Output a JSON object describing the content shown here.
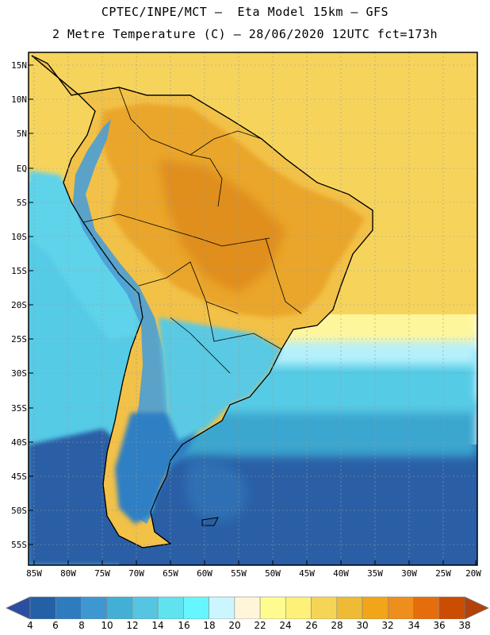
{
  "header": {
    "line1": "CPTEC/INPE/MCT –  Eta Model 15km – GFS",
    "line2": "2 Metre Temperature (C) – 28/06/2020 12UTC fct=173h"
  },
  "map": {
    "lat_labels": [
      "15N",
      "10N",
      "5N",
      "EQ",
      "5S",
      "10S",
      "15S",
      "20S",
      "25S",
      "30S",
      "35S",
      "40S",
      "45S",
      "50S",
      "55S"
    ],
    "lon_labels": [
      "85W",
      "80W",
      "75W",
      "70W",
      "65W",
      "60W",
      "55W",
      "50W",
      "45W",
      "40W",
      "35W",
      "30W",
      "25W",
      "20W"
    ],
    "colors": {
      "ocean_warm": "#f6d45c",
      "ocean_mid": "#fff59b",
      "ocean_cool": "#b5f0fb",
      "ocean_cold": "#55cbe6",
      "ocean_colder": "#3ba6cf",
      "ocean_coldest": "#2a5fa6",
      "land_hot": "#eaa62a",
      "land_very_hot": "#e08e1e",
      "andes": "#4a9fd6",
      "patagonia": "#2f7fc4"
    }
  },
  "colorbar": {
    "labels": [
      "4",
      "6",
      "8",
      "10",
      "12",
      "14",
      "16",
      "18",
      "20",
      "22",
      "24",
      "26",
      "28",
      "30",
      "32",
      "34",
      "36",
      "38"
    ],
    "colors": [
      "#2360a5",
      "#2f7bbf",
      "#3f97d2",
      "#42b0d6",
      "#55c5e1",
      "#61e2ef",
      "#66f6ff",
      "#ccf6ff",
      "#fff6da",
      "#fffc8f",
      "#fff07a",
      "#f6d556",
      "#efbb35",
      "#f3a519",
      "#ee8e1c",
      "#e56d0b",
      "#cb4c03"
    ],
    "low_arrow_color": "#2a4fa0",
    "high_arrow_color": "#b3420a"
  }
}
